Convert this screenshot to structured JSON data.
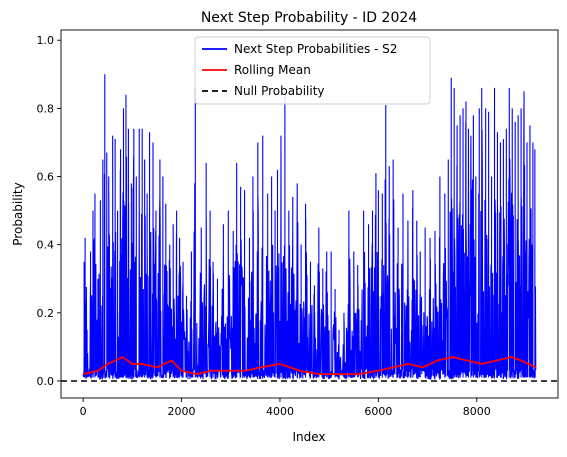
{
  "chart_data": {
    "type": "line",
    "title": "Next Step Probability - ID 2024",
    "xlabel": "Index",
    "ylabel": "Probability",
    "xlim": [
      -450,
      9650
    ],
    "ylim": [
      -0.05,
      1.03
    ],
    "xticks": [
      0,
      2000,
      4000,
      6000,
      8000
    ],
    "xtick_labels": [
      "0",
      "2000",
      "4000",
      "6000",
      "8000"
    ],
    "yticks": [
      0.0,
      0.2,
      0.4,
      0.6,
      0.8,
      1.0
    ],
    "ytick_labels": [
      "0.0",
      "0.2",
      "0.4",
      "0.6",
      "0.8",
      "1.0"
    ],
    "grid": false,
    "legend_position": "upper center",
    "series": [
      {
        "name": "Next Step Probabilities - S2",
        "color": "#0000ff",
        "style": "solid",
        "x_range": [
          0,
          9200
        ],
        "peaks": [
          [
            20,
            0.35
          ],
          [
            40,
            0.42
          ],
          [
            80,
            0.15
          ],
          [
            150,
            0.38
          ],
          [
            200,
            0.5
          ],
          [
            240,
            0.55
          ],
          [
            300,
            0.3
          ],
          [
            350,
            0.53
          ],
          [
            400,
            0.65
          ],
          [
            440,
            0.9
          ],
          [
            480,
            0.67
          ],
          [
            520,
            0.6
          ],
          [
            600,
            0.72
          ],
          [
            650,
            0.71
          ],
          [
            700,
            0.5
          ],
          [
            760,
            0.68
          ],
          [
            820,
            0.8
          ],
          [
            870,
            0.84
          ],
          [
            920,
            0.74
          ],
          [
            980,
            0.58
          ],
          [
            1030,
            0.74
          ],
          [
            1080,
            0.6
          ],
          [
            1140,
            0.74
          ],
          [
            1200,
            0.74
          ],
          [
            1250,
            0.65
          ],
          [
            1300,
            0.55
          ],
          [
            1350,
            0.73
          ],
          [
            1420,
            0.7
          ],
          [
            1480,
            0.5
          ],
          [
            1560,
            0.65
          ],
          [
            1620,
            0.6
          ],
          [
            1680,
            0.52
          ],
          [
            1760,
            0.4
          ],
          [
            1830,
            0.46
          ],
          [
            1900,
            0.5
          ],
          [
            1960,
            0.42
          ],
          [
            2030,
            0.35
          ],
          [
            2100,
            0.25
          ],
          [
            2200,
            0.38
          ],
          [
            2280,
            0.86
          ],
          [
            2400,
            0.45
          ],
          [
            2500,
            0.64
          ],
          [
            2580,
            0.5
          ],
          [
            2640,
            0.35
          ],
          [
            2730,
            0.3
          ],
          [
            2850,
            0.46
          ],
          [
            2950,
            0.5
          ],
          [
            3050,
            0.44
          ],
          [
            3120,
            0.64
          ],
          [
            3200,
            0.57
          ],
          [
            3280,
            0.56
          ],
          [
            3380,
            0.42
          ],
          [
            3450,
            0.6
          ],
          [
            3550,
            0.7
          ],
          [
            3650,
            0.72
          ],
          [
            3750,
            0.55
          ],
          [
            3830,
            0.6
          ],
          [
            3900,
            0.5
          ],
          [
            3950,
            0.62
          ],
          [
            4020,
            0.72
          ],
          [
            4100,
            0.85
          ],
          [
            4180,
            0.5
          ],
          [
            4260,
            0.54
          ],
          [
            4350,
            0.58
          ],
          [
            4430,
            0.4
          ],
          [
            4520,
            0.52
          ],
          [
            4620,
            0.35
          ],
          [
            4700,
            0.28
          ],
          [
            4790,
            0.45
          ],
          [
            4870,
            0.33
          ],
          [
            4950,
            0.38
          ],
          [
            5040,
            0.38
          ],
          [
            5120,
            0.27
          ],
          [
            5200,
            0.15
          ],
          [
            5300,
            0.2
          ],
          [
            5400,
            0.5
          ],
          [
            5500,
            0.38
          ],
          [
            5580,
            0.34
          ],
          [
            5700,
            0.5
          ],
          [
            5800,
            0.46
          ],
          [
            5880,
            0.5
          ],
          [
            5950,
            0.61
          ],
          [
            6000,
            0.56
          ],
          [
            6080,
            0.55
          ],
          [
            6150,
            0.81
          ],
          [
            6220,
            0.63
          ],
          [
            6300,
            0.65
          ],
          [
            6400,
            0.45
          ],
          [
            6500,
            0.55
          ],
          [
            6600,
            0.47
          ],
          [
            6700,
            0.56
          ],
          [
            6780,
            0.47
          ],
          [
            6850,
            0.38
          ],
          [
            6950,
            0.45
          ],
          [
            7050,
            0.42
          ],
          [
            7150,
            0.44
          ],
          [
            7250,
            0.6
          ],
          [
            7350,
            0.55
          ],
          [
            7420,
            0.65
          ],
          [
            7480,
            0.89
          ],
          [
            7540,
            0.86
          ],
          [
            7600,
            0.75
          ],
          [
            7660,
            0.78
          ],
          [
            7720,
            0.8
          ],
          [
            7780,
            0.82
          ],
          [
            7830,
            0.74
          ],
          [
            7880,
            0.72
          ],
          [
            7930,
            0.78
          ],
          [
            7980,
            0.6
          ],
          [
            8050,
            0.8
          ],
          [
            8100,
            0.86
          ],
          [
            8180,
            0.8
          ],
          [
            8240,
            0.79
          ],
          [
            8300,
            0.6
          ],
          [
            8360,
            0.86
          ],
          [
            8420,
            0.73
          ],
          [
            8480,
            0.7
          ],
          [
            8540,
            0.71
          ],
          [
            8600,
            0.74
          ],
          [
            8660,
            0.86
          ],
          [
            8720,
            0.8
          ],
          [
            8780,
            0.76
          ],
          [
            8840,
            0.78
          ],
          [
            8900,
            0.8
          ],
          [
            8960,
            0.85
          ],
          [
            9020,
            0.7
          ],
          [
            9080,
            0.75
          ],
          [
            9140,
            0.7
          ],
          [
            9180,
            0.68
          ]
        ]
      },
      {
        "name": "Rolling Mean",
        "color": "#ff0000",
        "style": "solid",
        "x": [
          0,
          300,
          500,
          800,
          1000,
          1200,
          1500,
          1800,
          2000,
          2300,
          2600,
          3000,
          3300,
          3600,
          4000,
          4400,
          4800,
          5200,
          5600,
          6000,
          6300,
          6600,
          6900,
          7200,
          7500,
          7800,
          8100,
          8400,
          8700,
          8900,
          9200
        ],
        "values": [
          0.02,
          0.03,
          0.05,
          0.07,
          0.05,
          0.05,
          0.04,
          0.06,
          0.03,
          0.02,
          0.03,
          0.03,
          0.03,
          0.04,
          0.05,
          0.03,
          0.02,
          0.02,
          0.02,
          0.03,
          0.04,
          0.05,
          0.04,
          0.06,
          0.07,
          0.06,
          0.05,
          0.06,
          0.07,
          0.06,
          0.04
        ]
      },
      {
        "name": "Null Probability",
        "color": "#000000",
        "style": "dashed",
        "constant": 0.0
      }
    ]
  }
}
